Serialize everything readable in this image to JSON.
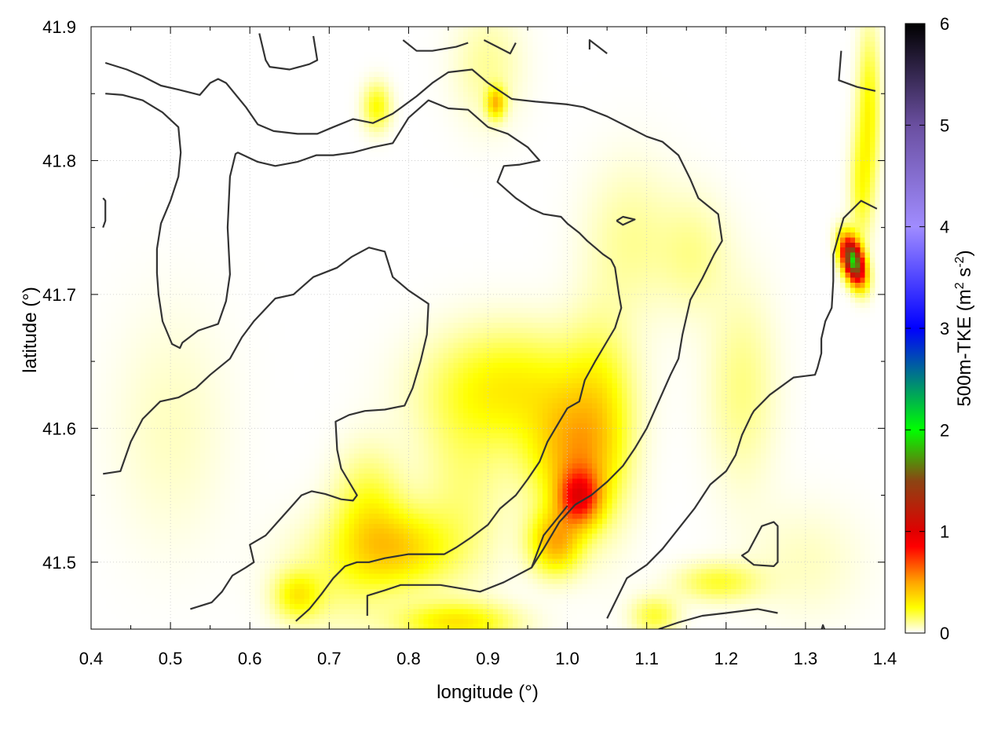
{
  "chart_data": {
    "type": "heatmap",
    "title": "",
    "xlabel": "longitude (°)",
    "ylabel": "latitude (°)",
    "colorbar_label": "500m-TKE (m² s⁻²)",
    "colorbar_label_parts": {
      "main": "500m-TKE (m",
      "sup1": "2",
      "mid": " s",
      "sup2": "-2",
      "end": ")"
    },
    "xlim": [
      0.4,
      1.4
    ],
    "ylim": [
      41.45,
      41.9
    ],
    "clim": [
      0,
      6
    ],
    "grid": true,
    "x_ticks": [
      0.4,
      0.5,
      0.6,
      0.7,
      0.8,
      0.9,
      1.0,
      1.1,
      1.2,
      1.3,
      1.4
    ],
    "x_tick_labels": [
      "0.4",
      "0.5",
      "0.6",
      "0.7",
      "0.8",
      "0.9",
      "1.0",
      "1.1",
      "1.2",
      "1.3",
      "1.4"
    ],
    "y_ticks": [
      41.5,
      41.6,
      41.7,
      41.8,
      41.9
    ],
    "y_tick_labels": [
      "41.5",
      "41.6",
      "41.7",
      "41.8",
      "41.9"
    ],
    "colorbar_ticks": [
      0,
      1,
      2,
      3,
      4,
      5,
      6
    ],
    "colorbar_tick_labels": [
      "0",
      "1",
      "2",
      "3",
      "4",
      "5",
      "6"
    ],
    "colormap": [
      [
        0.0,
        "#ffffff"
      ],
      [
        0.25,
        "#ffff00"
      ],
      [
        0.5,
        "#ffa500"
      ],
      [
        0.85,
        "#ff0000"
      ],
      [
        1.0,
        "#e00000"
      ],
      [
        1.5,
        "#8b4513"
      ],
      [
        2.0,
        "#00ff00"
      ],
      [
        3.0,
        "#0000ff"
      ],
      [
        4.0,
        "#a08cff"
      ],
      [
        5.0,
        "#6a4fa0"
      ],
      [
        6.0,
        "#000000"
      ]
    ],
    "tke_blobs": [
      {
        "x": 1.015,
        "y": 41.548,
        "sx": 0.018,
        "sy": 0.014,
        "v": 0.7
      },
      {
        "x": 0.985,
        "y": 41.515,
        "sx": 0.022,
        "sy": 0.016,
        "v": 0.45
      },
      {
        "x": 1.0,
        "y": 41.58,
        "sx": 0.035,
        "sy": 0.03,
        "v": 0.35
      },
      {
        "x": 0.93,
        "y": 41.63,
        "sx": 0.07,
        "sy": 0.03,
        "v": 0.28
      },
      {
        "x": 1.04,
        "y": 41.6,
        "sx": 0.03,
        "sy": 0.05,
        "v": 0.25
      },
      {
        "x": 0.79,
        "y": 41.51,
        "sx": 0.045,
        "sy": 0.02,
        "v": 0.32
      },
      {
        "x": 0.75,
        "y": 41.54,
        "sx": 0.03,
        "sy": 0.03,
        "v": 0.2
      },
      {
        "x": 0.71,
        "y": 41.49,
        "sx": 0.05,
        "sy": 0.03,
        "v": 0.12
      },
      {
        "x": 0.66,
        "y": 41.475,
        "sx": 0.02,
        "sy": 0.012,
        "v": 0.25
      },
      {
        "x": 0.86,
        "y": 41.455,
        "sx": 0.05,
        "sy": 0.01,
        "v": 0.3
      },
      {
        "x": 0.87,
        "y": 41.555,
        "sx": 0.04,
        "sy": 0.05,
        "v": 0.12
      },
      {
        "x": 1.11,
        "y": 41.46,
        "sx": 0.02,
        "sy": 0.01,
        "v": 0.2
      },
      {
        "x": 1.19,
        "y": 41.485,
        "sx": 0.035,
        "sy": 0.01,
        "v": 0.2
      },
      {
        "x": 1.22,
        "y": 41.63,
        "sx": 0.03,
        "sy": 0.05,
        "v": 0.12
      },
      {
        "x": 1.16,
        "y": 41.73,
        "sx": 0.03,
        "sy": 0.03,
        "v": 0.1
      },
      {
        "x": 1.08,
        "y": 41.74,
        "sx": 0.04,
        "sy": 0.04,
        "v": 0.1
      },
      {
        "x": 0.76,
        "y": 41.84,
        "sx": 0.012,
        "sy": 0.012,
        "v": 0.25
      },
      {
        "x": 0.91,
        "y": 41.843,
        "sx": 0.008,
        "sy": 0.008,
        "v": 0.4
      },
      {
        "x": 0.9,
        "y": 41.87,
        "sx": 0.03,
        "sy": 0.03,
        "v": 0.1
      },
      {
        "x": 1.38,
        "y": 41.84,
        "sx": 0.01,
        "sy": 0.04,
        "v": 0.25
      },
      {
        "x": 1.37,
        "y": 41.78,
        "sx": 0.01,
        "sy": 0.03,
        "v": 0.2
      },
      {
        "x": 0.5,
        "y": 41.6,
        "sx": 0.05,
        "sy": 0.06,
        "v": 0.06
      },
      {
        "x": 1.3,
        "y": 41.5,
        "sx": 0.05,
        "sy": 0.03,
        "v": 0.06
      }
    ],
    "tke_peak": {
      "x": 1.36,
      "y": 41.725,
      "sx": 0.008,
      "sy": 0.013,
      "v": 1.9,
      "angle_deg": 35
    },
    "contours": [
      [
        [
          0.418,
          41.873
        ],
        [
          0.445,
          41.868
        ],
        [
          0.465,
          41.863
        ],
        [
          0.488,
          41.856
        ],
        [
          0.51,
          41.853
        ],
        [
          0.537,
          41.849
        ],
        [
          0.55,
          41.858
        ],
        [
          0.56,
          41.861
        ],
        [
          0.57,
          41.858
        ],
        [
          0.595,
          41.84
        ],
        [
          0.61,
          41.827
        ],
        [
          0.63,
          41.822
        ],
        [
          0.66,
          41.82
        ],
        [
          0.685,
          41.82
        ],
        [
          0.705,
          41.825
        ],
        [
          0.73,
          41.831
        ],
        [
          0.755,
          41.828
        ],
        [
          0.78,
          41.835
        ],
        [
          0.81,
          41.848
        ],
        [
          0.83,
          41.858
        ],
        [
          0.85,
          41.866
        ],
        [
          0.88,
          41.868
        ],
        [
          0.9,
          41.858
        ],
        [
          0.93,
          41.846
        ],
        [
          0.96,
          41.844
        ],
        [
          1.0,
          41.842
        ],
        [
          1.02,
          41.84
        ],
        [
          1.05,
          41.833
        ],
        [
          1.08,
          41.824
        ],
        [
          1.1,
          41.818
        ],
        [
          1.12,
          41.814
        ],
        [
          1.14,
          41.804
        ],
        [
          1.155,
          41.786
        ],
        [
          1.165,
          41.772
        ],
        [
          1.19,
          41.76
        ],
        [
          1.195,
          41.74
        ],
        [
          1.185,
          41.73
        ],
        [
          1.17,
          41.712
        ],
        [
          1.155,
          41.696
        ],
        [
          1.145,
          41.67
        ],
        [
          1.14,
          41.652
        ],
        [
          1.13,
          41.64
        ],
        [
          1.115,
          41.62
        ],
        [
          1.1,
          41.6
        ],
        [
          1.085,
          41.585
        ],
        [
          1.07,
          41.572
        ],
        [
          1.05,
          41.56
        ],
        [
          1.03,
          41.55
        ],
        [
          1.01,
          41.543
        ],
        [
          0.99,
          41.53
        ],
        [
          0.97,
          41.51
        ],
        [
          0.955,
          41.496
        ],
        [
          0.92,
          41.485
        ],
        [
          0.89,
          41.478
        ],
        [
          0.84,
          41.483
        ],
        [
          0.79,
          41.483
        ],
        [
          0.77,
          41.479
        ],
        [
          0.748,
          41.475
        ],
        [
          0.748,
          41.46
        ]
      ],
      [
        [
          0.418,
          41.85
        ],
        [
          0.44,
          41.849
        ],
        [
          0.465,
          41.845
        ],
        [
          0.49,
          41.836
        ],
        [
          0.51,
          41.825
        ],
        [
          0.513,
          41.806
        ],
        [
          0.51,
          41.788
        ],
        [
          0.5,
          41.77
        ],
        [
          0.488,
          41.753
        ],
        [
          0.483,
          41.734
        ],
        [
          0.483,
          41.716
        ],
        [
          0.485,
          41.7
        ],
        [
          0.49,
          41.68
        ],
        [
          0.502,
          41.663
        ],
        [
          0.512,
          41.66
        ],
        [
          0.515,
          41.664
        ],
        [
          0.535,
          41.673
        ],
        [
          0.56,
          41.678
        ],
        [
          0.57,
          41.695
        ],
        [
          0.575,
          41.715
        ],
        [
          0.572,
          41.75
        ],
        [
          0.575,
          41.788
        ],
        [
          0.582,
          41.805
        ],
        [
          0.585,
          41.806
        ],
        [
          0.61,
          41.799
        ],
        [
          0.632,
          41.796
        ],
        [
          0.66,
          41.799
        ],
        [
          0.684,
          41.804
        ],
        [
          0.705,
          41.804
        ],
        [
          0.73,
          41.806
        ],
        [
          0.755,
          41.81
        ],
        [
          0.78,
          41.813
        ],
        [
          0.8,
          41.832
        ],
        [
          0.825,
          41.845
        ],
        [
          0.85,
          41.839
        ],
        [
          0.875,
          41.838
        ],
        [
          0.9,
          41.825
        ],
        [
          0.925,
          41.82
        ],
        [
          0.95,
          41.81
        ],
        [
          0.965,
          41.8
        ],
        [
          0.94,
          41.797
        ],
        [
          0.92,
          41.796
        ],
        [
          0.912,
          41.784
        ],
        [
          0.935,
          41.772
        ],
        [
          0.955,
          41.764
        ],
        [
          0.97,
          41.76
        ],
        [
          0.992,
          41.758
        ],
        [
          1.0,
          41.753
        ],
        [
          1.015,
          41.746
        ],
        [
          1.025,
          41.74
        ],
        [
          1.045,
          41.73
        ],
        [
          1.055,
          41.726
        ],
        [
          1.06,
          41.72
        ],
        [
          1.065,
          41.7
        ],
        [
          1.068,
          41.69
        ],
        [
          1.06,
          41.675
        ],
        [
          1.05,
          41.665
        ],
        [
          1.035,
          41.65
        ],
        [
          1.022,
          41.636
        ],
        [
          1.015,
          41.62
        ],
        [
          1.0,
          41.615
        ],
        [
          0.985,
          41.6
        ],
        [
          0.975,
          41.59
        ],
        [
          0.965,
          41.575
        ],
        [
          0.95,
          41.562
        ],
        [
          0.935,
          41.55
        ],
        [
          0.915,
          41.54
        ],
        [
          0.9,
          41.528
        ],
        [
          0.88,
          41.519
        ],
        [
          0.86,
          41.511
        ],
        [
          0.845,
          41.506
        ],
        [
          0.8,
          41.506
        ],
        [
          0.77,
          41.503
        ],
        [
          0.75,
          41.5
        ],
        [
          0.735,
          41.5
        ],
        [
          0.72,
          41.497
        ],
        [
          0.705,
          41.488
        ],
        [
          0.69,
          41.476
        ],
        [
          0.675,
          41.465
        ],
        [
          0.658,
          41.456
        ]
      ],
      [
        [
          0.415,
          41.566
        ],
        [
          0.437,
          41.568
        ],
        [
          0.45,
          41.59
        ],
        [
          0.465,
          41.607
        ],
        [
          0.487,
          41.62
        ],
        [
          0.51,
          41.623
        ],
        [
          0.532,
          41.63
        ],
        [
          0.55,
          41.64
        ],
        [
          0.575,
          41.652
        ],
        [
          0.59,
          41.668
        ],
        [
          0.605,
          41.68
        ],
        [
          0.632,
          41.697
        ],
        [
          0.655,
          41.7
        ],
        [
          0.68,
          41.713
        ],
        [
          0.71,
          41.72
        ],
        [
          0.728,
          41.728
        ],
        [
          0.75,
          41.735
        ],
        [
          0.77,
          41.732
        ],
        [
          0.78,
          41.713
        ],
        [
          0.8,
          41.703
        ],
        [
          0.825,
          41.693
        ],
        [
          0.823,
          41.67
        ],
        [
          0.815,
          41.65
        ],
        [
          0.805,
          41.63
        ],
        [
          0.795,
          41.617
        ],
        [
          0.77,
          41.614
        ],
        [
          0.745,
          41.613
        ],
        [
          0.725,
          41.61
        ],
        [
          0.708,
          41.605
        ],
        [
          0.71,
          41.584
        ],
        [
          0.715,
          41.57
        ],
        [
          0.725,
          41.56
        ],
        [
          0.735,
          41.55
        ],
        [
          0.73,
          41.546
        ],
        [
          0.715,
          41.547
        ],
        [
          0.695,
          41.551
        ],
        [
          0.678,
          41.553
        ],
        [
          0.665,
          41.55
        ],
        [
          0.65,
          41.54
        ],
        [
          0.635,
          41.53
        ],
        [
          0.62,
          41.52
        ],
        [
          0.6,
          41.513
        ],
        [
          0.605,
          41.5
        ],
        [
          0.595,
          41.496
        ],
        [
          0.578,
          41.49
        ],
        [
          0.565,
          41.478
        ],
        [
          0.552,
          41.47
        ],
        [
          0.525,
          41.465
        ]
      ],
      [
        [
          1.228,
          41.508
        ],
        [
          1.245,
          41.527
        ],
        [
          1.26,
          41.53
        ],
        [
          1.265,
          41.527
        ],
        [
          1.265,
          41.5
        ],
        [
          1.26,
          41.497
        ],
        [
          1.235,
          41.498
        ],
        [
          1.22,
          41.505
        ],
        [
          1.228,
          41.508
        ]
      ],
      [
        [
          1.265,
          41.462
        ],
        [
          1.24,
          41.465
        ],
        [
          1.2,
          41.462
        ],
        [
          1.17,
          41.46
        ],
        [
          1.14,
          41.455
        ],
        [
          1.115,
          41.45
        ]
      ],
      [
        [
          1.0,
          41.542
        ],
        [
          0.97,
          41.52
        ],
        [
          0.955,
          41.496
        ]
      ],
      [
        [
          0.415,
          41.772
        ],
        [
          0.418,
          41.77
        ],
        [
          0.418,
          41.755
        ],
        [
          0.415,
          41.75
        ]
      ],
      [
        [
          0.612,
          41.895
        ],
        [
          0.62,
          41.875
        ],
        [
          0.625,
          41.87
        ],
        [
          0.65,
          41.868
        ],
        [
          0.675,
          41.872
        ],
        [
          0.685,
          41.875
        ],
        [
          0.68,
          41.893
        ]
      ],
      [
        [
          0.793,
          41.89
        ],
        [
          0.81,
          41.882
        ],
        [
          0.83,
          41.882
        ],
        [
          0.86,
          41.885
        ],
        [
          0.875,
          41.888
        ]
      ],
      [
        [
          0.895,
          41.89
        ],
        [
          0.928,
          41.88
        ],
        [
          0.935,
          41.888
        ]
      ],
      [
        [
          1.028,
          41.883
        ],
        [
          1.028,
          41.89
        ],
        [
          1.05,
          41.88
        ]
      ],
      [
        [
          1.345,
          41.882
        ],
        [
          1.342,
          41.86
        ],
        [
          1.365,
          41.855
        ],
        [
          1.388,
          41.852
        ]
      ],
      [
        [
          1.39,
          41.764
        ],
        [
          1.37,
          41.77
        ],
        [
          1.348,
          41.757
        ],
        [
          1.335,
          41.73
        ],
        [
          1.335,
          41.71
        ],
        [
          1.333,
          41.69
        ],
        [
          1.325,
          41.68
        ],
        [
          1.32,
          41.667
        ],
        [
          1.32,
          41.656
        ],
        [
          1.315,
          41.645
        ],
        [
          1.312,
          41.64
        ],
        [
          1.285,
          41.638
        ],
        [
          1.255,
          41.625
        ],
        [
          1.235,
          41.613
        ],
        [
          1.232,
          41.61
        ],
        [
          1.22,
          41.595
        ],
        [
          1.212,
          41.58
        ],
        [
          1.2,
          41.568
        ],
        [
          1.18,
          41.558
        ],
        [
          1.16,
          41.54
        ],
        [
          1.14,
          41.525
        ],
        [
          1.12,
          41.51
        ],
        [
          1.1,
          41.498
        ],
        [
          1.075,
          41.488
        ],
        [
          1.06,
          41.47
        ],
        [
          1.05,
          41.458
        ]
      ],
      [
        [
          1.062,
          41.755
        ],
        [
          1.07,
          41.758
        ],
        [
          1.085,
          41.756
        ],
        [
          1.07,
          41.752
        ],
        [
          1.062,
          41.755
        ]
      ],
      [
        [
          1.318,
          41.445
        ],
        [
          1.322,
          41.453
        ],
        [
          1.327,
          41.445
        ]
      ]
    ]
  }
}
